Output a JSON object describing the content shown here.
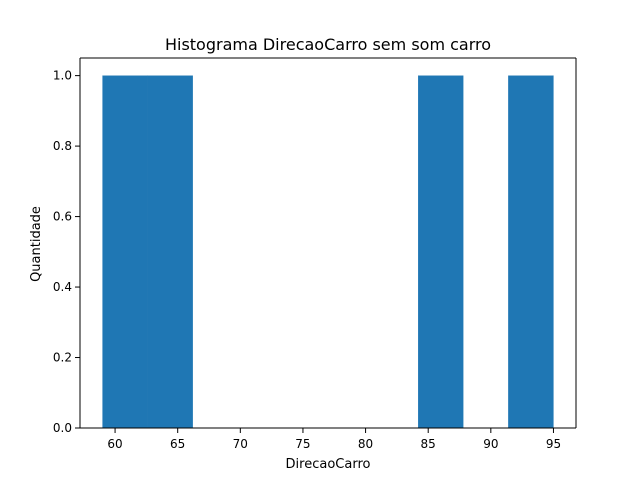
{
  "chart_data": {
    "type": "bar",
    "title": "Histograma DirecaoCarro sem som carro",
    "xlabel": "DirecaoCarro",
    "ylabel": "Quantidade",
    "bins": [
      {
        "x0": 59.0,
        "x1": 62.6,
        "value": 1
      },
      {
        "x0": 62.6,
        "x1": 66.2,
        "value": 1
      },
      {
        "x0": 66.2,
        "x1": 69.8,
        "value": 0
      },
      {
        "x0": 69.8,
        "x1": 73.4,
        "value": 0
      },
      {
        "x0": 73.4,
        "x1": 77.0,
        "value": 0
      },
      {
        "x0": 77.0,
        "x1": 80.6,
        "value": 0
      },
      {
        "x0": 80.6,
        "x1": 84.2,
        "value": 0
      },
      {
        "x0": 84.2,
        "x1": 87.8,
        "value": 1
      },
      {
        "x0": 87.8,
        "x1": 91.4,
        "value": 0
      },
      {
        "x0": 91.4,
        "x1": 95.0,
        "value": 1
      }
    ],
    "xlim": [
      57.2,
      96.8
    ],
    "ylim": [
      0,
      1.05
    ],
    "xticks": [
      60,
      65,
      70,
      75,
      80,
      85,
      90,
      95
    ],
    "xtick_labels": [
      "60",
      "65",
      "70",
      "75",
      "80",
      "85",
      "90",
      "95"
    ],
    "yticks": [
      0.0,
      0.2,
      0.4,
      0.6,
      0.8,
      1.0
    ],
    "ytick_labels": [
      "0.0",
      "0.2",
      "0.4",
      "0.6",
      "0.8",
      "1.0"
    ],
    "grid": false,
    "legend": "none",
    "bar_color": "#1f77b4"
  }
}
